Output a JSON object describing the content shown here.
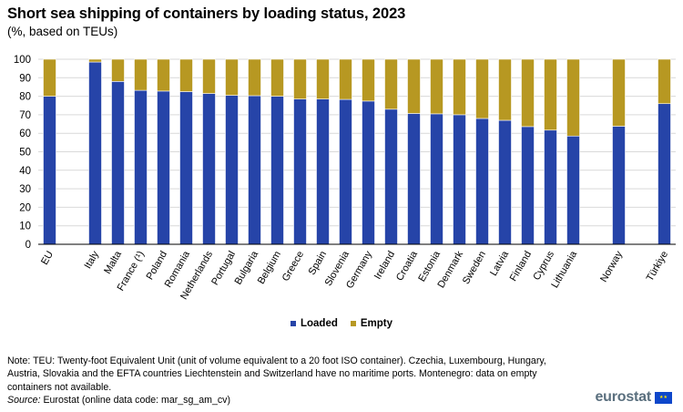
{
  "title": "Short sea shipping of containers by loading status, 2023",
  "subtitle": "(%, based on TEUs)",
  "note": "Note: TEU: Twenty-foot Equivalent Unit (unit of volume equivalent to a 20 foot ISO container). Czechia, Luxembourg, Hungary, Austria, Slovakia and the EFTA countries Liechtenstein and Switzerland have no maritime ports. Montenegro: data on empty containers not available.",
  "source_label": "Source:",
  "source_text": "Eurostat (online data code: mar_sg_am_cv)",
  "logo_text": "eurostat",
  "colors": {
    "loaded": "#2644a8",
    "empty": "#b79822",
    "grid": "#d9d9d9",
    "axis": "#000000"
  },
  "chart_data": {
    "type": "bar",
    "stacked": true,
    "categories": [
      "EU",
      "",
      "Italy",
      "Malta",
      "France (¹)",
      "Poland",
      "Romania",
      "Netherlands",
      "Portugal",
      "Bulgaria",
      "Belgium",
      "Greece",
      "Spain",
      "Slovenia",
      "Germany",
      "Ireland",
      "Croatia",
      "Estonia",
      "Denmark",
      "Sweden",
      "Latvia",
      "Finland",
      "Cyprus",
      "Lithuania",
      "",
      "Norway",
      "",
      "Türkiye"
    ],
    "series": [
      {
        "name": "Loaded",
        "color": "#2644a8",
        "values": [
          80,
          null,
          98.5,
          88,
          83.2,
          82.8,
          82.5,
          81.5,
          80.5,
          80.3,
          80,
          78.5,
          78.5,
          78.3,
          77.4,
          73,
          70.7,
          70.5,
          70,
          68,
          67,
          63.6,
          61.7,
          58.5,
          null,
          63.8,
          null,
          76
        ]
      },
      {
        "name": "Empty",
        "color": "#b79822",
        "values": [
          20,
          null,
          1.5,
          12,
          16.8,
          17.2,
          17.5,
          18.5,
          19.5,
          19.7,
          20,
          21.5,
          21.5,
          21.7,
          22.6,
          27,
          29.3,
          29.5,
          30,
          32,
          33,
          36.4,
          38.3,
          41.5,
          null,
          36.2,
          null,
          24
        ]
      }
    ],
    "ylim": [
      0,
      100
    ],
    "yticks": [
      0,
      10,
      20,
      30,
      40,
      50,
      60,
      70,
      80,
      90,
      100
    ],
    "grid": true,
    "legend": "bottom-center"
  }
}
